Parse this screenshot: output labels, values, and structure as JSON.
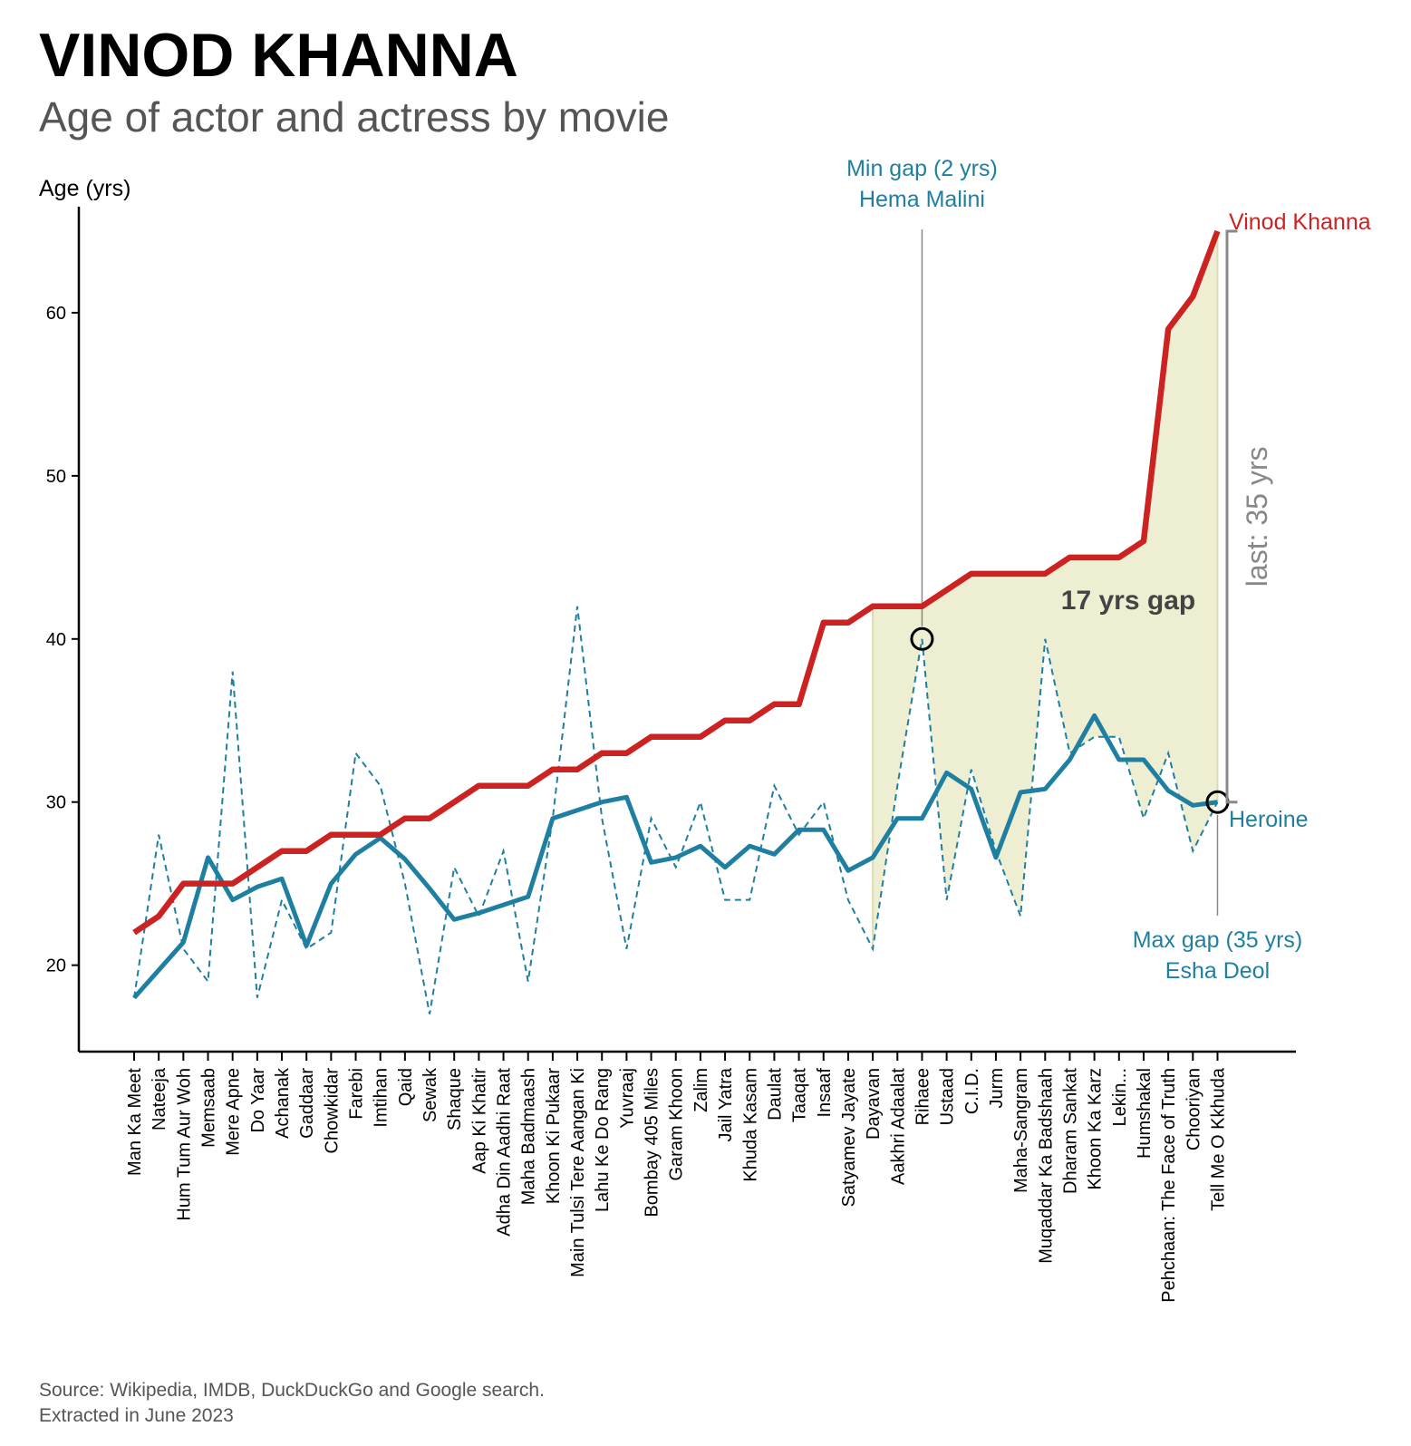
{
  "title": "VINOD KHANNA",
  "subtitle": "Age of actor and actress by movie",
  "source_line1": "Source: Wikipedia, IMDB, DuckDuckGo and Google search.",
  "source_line2": "Extracted in June 2023",
  "colors": {
    "actor": "#cc2222",
    "heroine": "#1f7fa0",
    "gap_fill": "#eeeed2",
    "bracket": "#888888",
    "annotation": "#1f7fa0"
  },
  "chart_data": {
    "type": "line",
    "ylabel": "Age (yrs)",
    "ylim": [
      14.7,
      66.5
    ],
    "yticks": [
      20,
      30,
      40,
      50,
      60
    ],
    "x": [
      "Man Ka Meet",
      "Nateeja",
      "Hum Tum Aur Woh",
      "Memsaab",
      "Mere Apne",
      "Do Yaar",
      "Achanak",
      "Gaddaar",
      "Chowkidar",
      "Farebi",
      "Imtihan",
      "Qaid",
      "Sewak",
      "Shaque",
      "Aap Ki Khatir",
      "Adha Din Aadhi Raat",
      "Maha Badmaash",
      "Khoon Ki Pukaar",
      "Main Tulsi Tere Aangan Ki",
      "Lahu Ke Do Rang",
      "Yuvraaj",
      "Bombay 405 Miles",
      "Garam Khoon",
      "Zalim",
      "Jail Yatra",
      "Khuda Kasam",
      "Daulat",
      "Taaqat",
      "Insaaf",
      "Satyamev Jayate",
      "Dayavan",
      "Aakhri Adaalat",
      "Rihaee",
      "Ustaad",
      "C.I.D.",
      "Jurm",
      "Maha-Sangram",
      "Muqaddar Ka Badshaah",
      "Dharam Sankat",
      "Khoon Ka Karz",
      "Lekin...",
      "Humshakal",
      "Pehchaan: The Face of Truth",
      "Chooriyan",
      "Tell Me O Kkhuda"
    ],
    "series": [
      {
        "name": "Vinod Khanna",
        "style": "solid-thick",
        "values": [
          22,
          23,
          25,
          25,
          25,
          26,
          27,
          27,
          28,
          28,
          28,
          29,
          29,
          30,
          31,
          31,
          31,
          32,
          32,
          33,
          33,
          34,
          34,
          34,
          35,
          35,
          36,
          36,
          41,
          41,
          42,
          42,
          42,
          43,
          44,
          44,
          44,
          44,
          45,
          45,
          45,
          46,
          59,
          61,
          65
        ]
      },
      {
        "name": "Heroine",
        "style": "solid",
        "values": [
          18,
          19.7,
          21.4,
          26.6,
          24.0,
          24.8,
          25.3,
          21.2,
          25.0,
          26.8,
          27.8,
          26.5,
          24.7,
          22.8,
          23.2,
          23.7,
          24.2,
          29.0,
          29.5,
          30.0,
          30.3,
          26.3,
          26.6,
          27.3,
          26.0,
          27.3,
          26.8,
          28.3,
          28.3,
          25.8,
          26.6,
          29.0,
          29.0,
          31.8,
          30.8,
          26.6,
          30.6,
          30.8,
          32.6,
          35.3,
          32.6,
          32.6,
          30.7,
          29.8,
          30.0
        ]
      },
      {
        "name": "",
        "style": "dashed",
        "values": [
          18,
          28,
          21,
          19,
          38,
          18,
          24,
          21,
          22,
          33,
          31,
          25,
          17,
          26,
          23,
          27,
          19,
          29,
          42,
          29,
          21,
          29,
          26,
          30,
          24,
          24,
          31,
          28,
          30,
          24,
          21,
          31,
          40,
          24,
          32,
          27,
          23,
          40,
          33,
          34,
          34,
          29,
          33,
          27,
          30
        ]
      }
    ],
    "annotations": {
      "min_gap_line1": "Min gap (2 yrs)",
      "min_gap_line2": "Hema Malini",
      "max_gap_line1": "Max gap (35 yrs)",
      "max_gap_line2": "Esha Deol",
      "gap_label": "17 yrs gap",
      "last_label": "last: 35 yrs",
      "actor_label": "Vinod Khanna",
      "heroine_label": "Heroine",
      "min_gap_index": 32,
      "max_gap_index": 44,
      "shade_from_index": 30,
      "shade_to_index": 44
    }
  }
}
